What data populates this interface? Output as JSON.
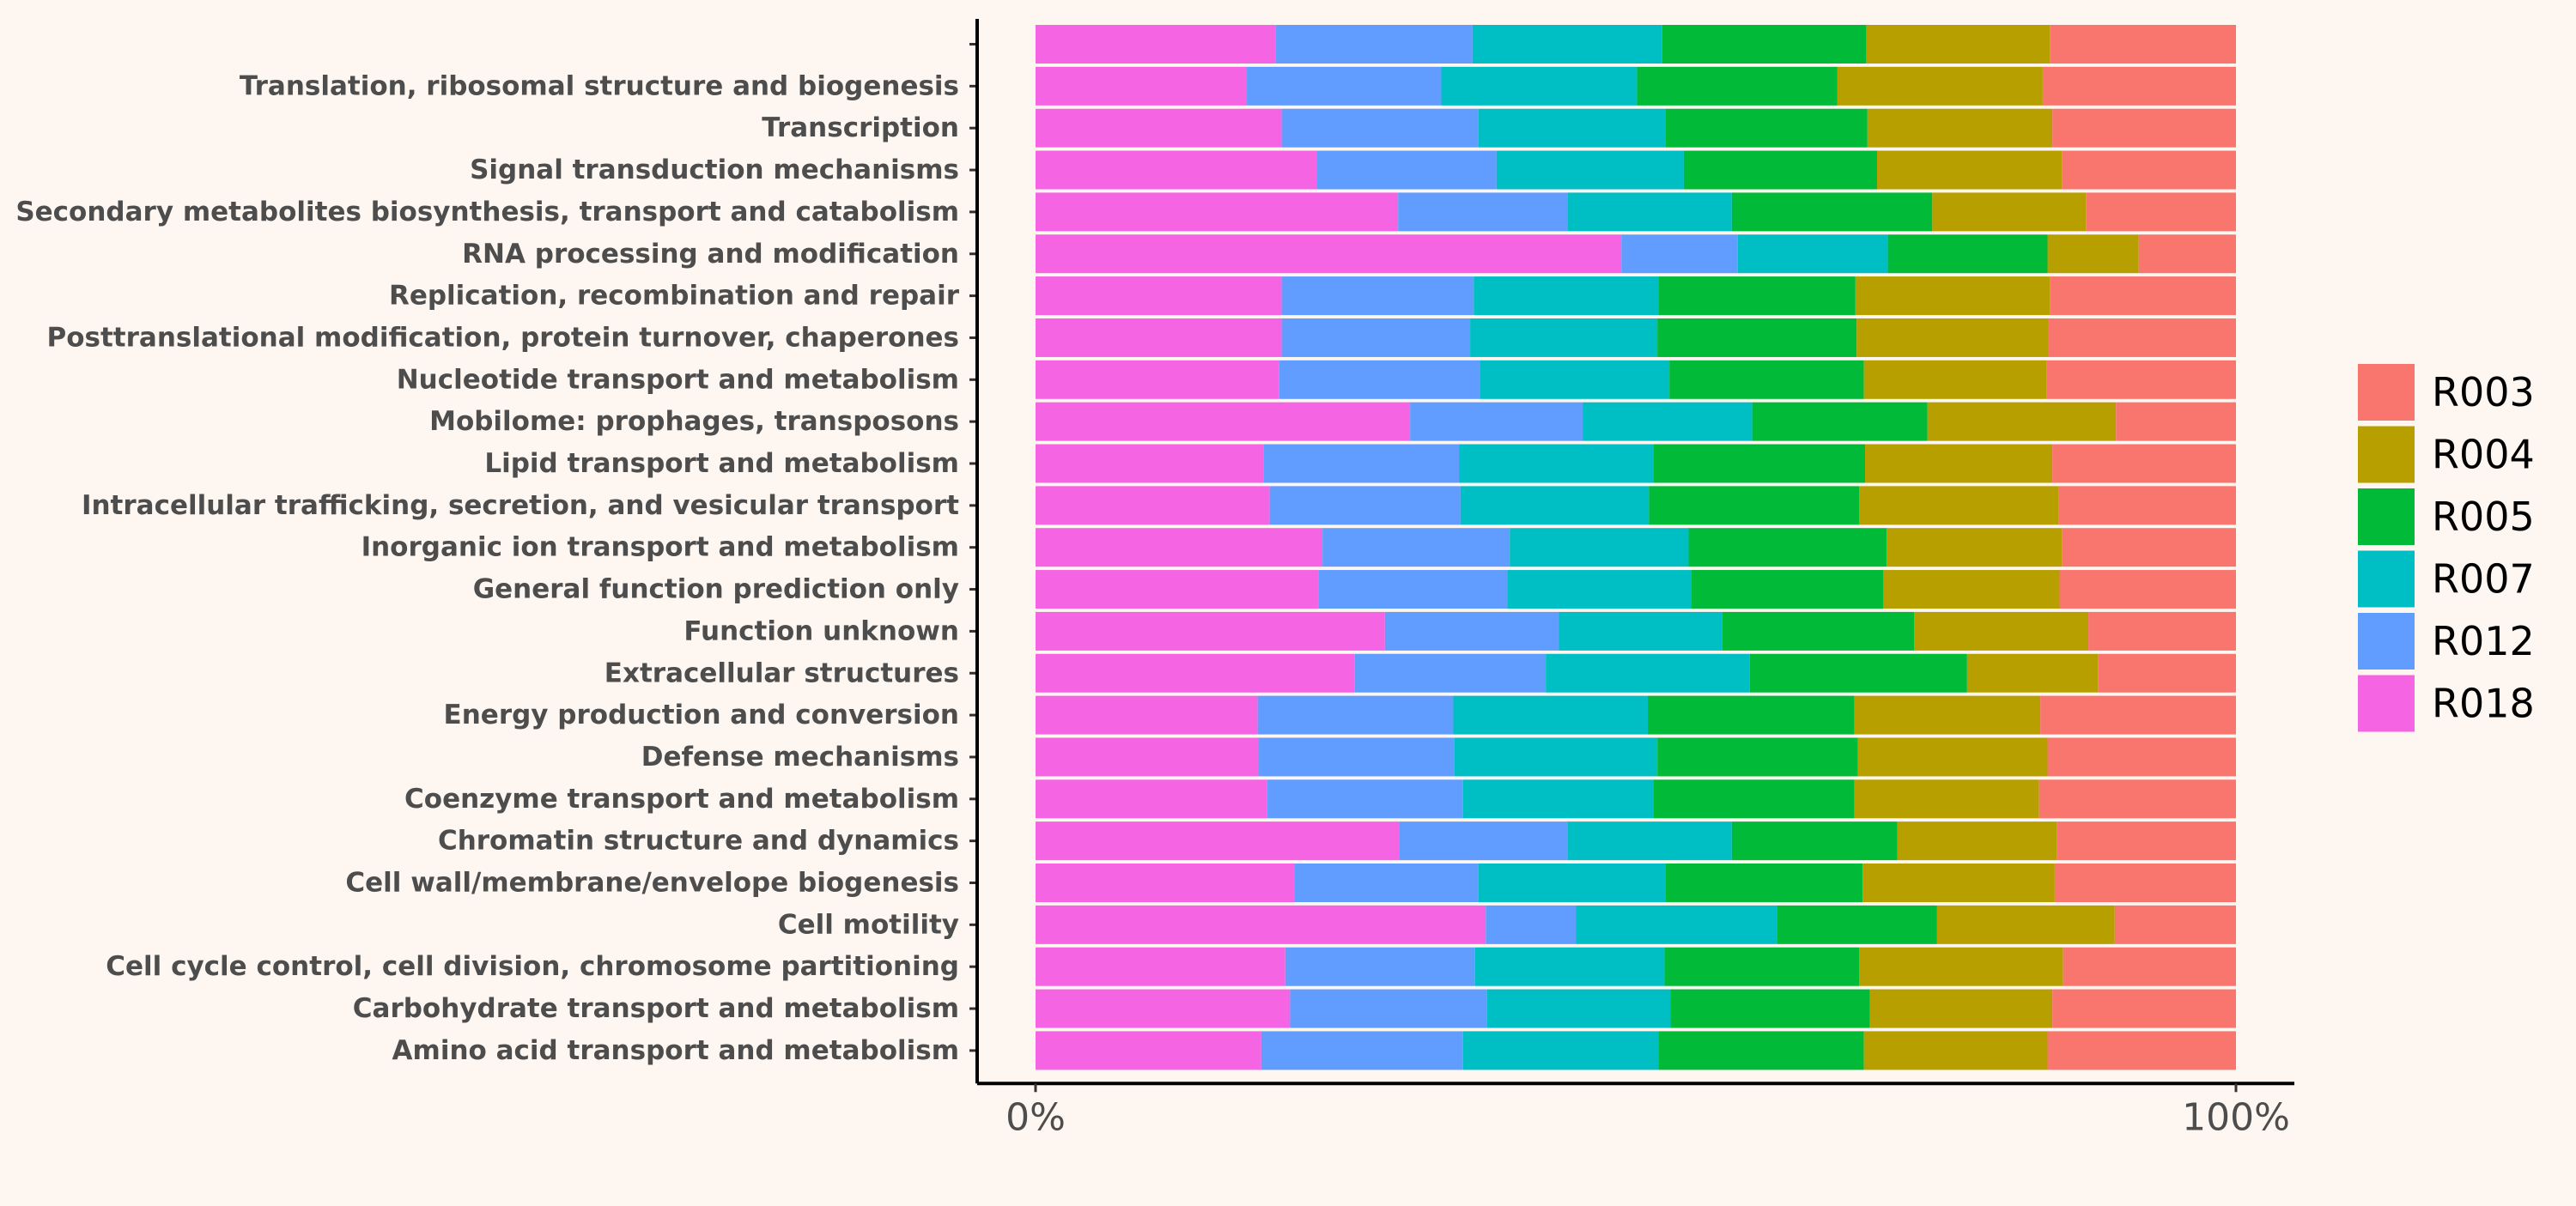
{
  "chart_data": {
    "type": "bar",
    "orientation": "horizontal",
    "stacked": true,
    "normalized": true,
    "title": "",
    "xlabel": "",
    "ylabel": "",
    "xlim": [
      0,
      100
    ],
    "xticks": [
      "0%",
      "100%"
    ],
    "grid": false,
    "legend_position": "right",
    "categories": [
      "",
      "Translation, ribosomal structure and biogenesis",
      "Transcription",
      "Signal transduction mechanisms",
      "Secondary metabolites biosynthesis, transport and catabolism",
      "RNA processing and modification",
      "Replication, recombination and repair",
      "Posttranslational modification, protein turnover, chaperones",
      "Nucleotide transport and metabolism",
      "Mobilome: prophages, transposons",
      "Lipid transport and metabolism",
      "Intracellular trafficking, secretion, and vesicular transport",
      "Inorganic ion transport and metabolism",
      "General function prediction only",
      "Function unknown",
      "Extracellular structures",
      "Energy production and conversion",
      "Defense mechanisms",
      "Coenzyme transport and metabolism",
      "Chromatin structure and dynamics",
      "Cell wall/membrane/envelope biogenesis",
      "Cell motility",
      "Cell cycle control, cell division, chromosome partitioning",
      "Carbohydrate transport and metabolism",
      "Amino acid transport and metabolism"
    ],
    "stack_order": [
      "R018",
      "R012",
      "R007",
      "R005",
      "R004",
      "R003"
    ],
    "legend_order": [
      "R003",
      "R004",
      "R005",
      "R007",
      "R012",
      "R018"
    ],
    "colors": {
      "R003": "#F8766D",
      "R004": "#B79F00",
      "R005": "#00BA38",
      "R007": "#00BFC4",
      "R012": "#619CFF",
      "R018": "#F564E3"
    },
    "series": [
      {
        "name": "R018",
        "values": [
          20.0,
          17.6,
          20.5,
          23.4,
          30.2,
          48.8,
          20.5,
          20.5,
          20.3,
          31.2,
          19.0,
          19.5,
          23.9,
          23.6,
          29.1,
          26.6,
          18.5,
          18.6,
          19.3,
          30.3,
          21.6,
          37.5,
          20.8,
          21.2,
          18.8
        ]
      },
      {
        "name": "R012",
        "values": [
          16.4,
          16.2,
          16.4,
          15.0,
          14.1,
          9.7,
          16.0,
          15.7,
          16.7,
          14.4,
          16.3,
          15.9,
          15.6,
          15.7,
          14.5,
          15.9,
          16.3,
          16.3,
          16.3,
          14.0,
          15.3,
          7.5,
          15.8,
          16.4,
          16.8
        ]
      },
      {
        "name": "R007",
        "values": [
          15.8,
          16.3,
          15.6,
          15.6,
          13.7,
          12.5,
          15.4,
          15.6,
          15.8,
          14.1,
          16.2,
          15.7,
          14.9,
          15.3,
          13.6,
          17.0,
          16.2,
          16.9,
          15.9,
          13.7,
          15.6,
          16.8,
          15.8,
          15.3,
          16.3
        ]
      },
      {
        "name": "R005",
        "values": [
          17.0,
          16.7,
          16.8,
          16.1,
          16.7,
          13.3,
          16.4,
          16.6,
          16.2,
          14.6,
          17.6,
          17.5,
          16.5,
          16.0,
          16.0,
          18.1,
          17.2,
          16.7,
          16.7,
          13.8,
          16.4,
          13.3,
          16.2,
          16.6,
          17.1
        ]
      },
      {
        "name": "R004",
        "values": [
          15.3,
          17.1,
          15.4,
          15.4,
          12.8,
          7.6,
          16.2,
          16.0,
          15.2,
          15.7,
          15.6,
          16.6,
          14.6,
          14.7,
          14.5,
          10.9,
          15.5,
          15.8,
          15.4,
          13.3,
          16.0,
          14.8,
          17.0,
          15.2,
          15.3
        ]
      },
      {
        "name": "R003",
        "values": [
          15.5,
          16.1,
          15.3,
          14.5,
          12.5,
          8.1,
          15.5,
          15.6,
          15.8,
          10.0,
          15.3,
          14.8,
          14.5,
          14.7,
          12.3,
          11.5,
          16.3,
          15.7,
          16.4,
          14.9,
          15.1,
          10.1,
          14.4,
          15.3,
          15.7
        ]
      }
    ]
  }
}
